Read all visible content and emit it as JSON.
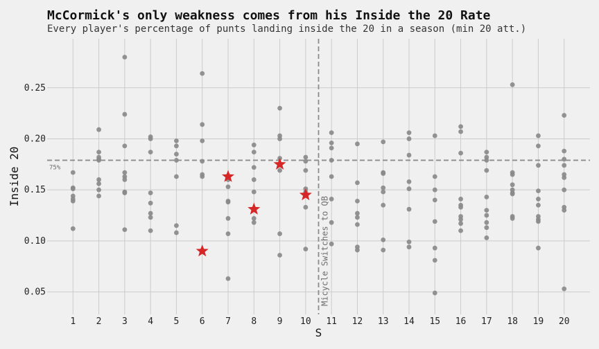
{
  "chart_data": {
    "type": "scatter",
    "title": "McCormick's only weakness comes from his Inside the 20 Rate",
    "subtitle": "Every player's percentage of punts landing inside the 20 in a season (min 20 att.)",
    "xlabel": "S",
    "ylabel": "Inside 20",
    "xlim": [
      0,
      21
    ],
    "ylim": [
      0.028,
      0.298
    ],
    "xticks": [
      1,
      2,
      3,
      4,
      5,
      6,
      7,
      8,
      9,
      10,
      11,
      12,
      13,
      14,
      15,
      16,
      17,
      18,
      19,
      20
    ],
    "yticks": [
      0.05,
      0.1,
      0.15,
      0.2,
      0.25
    ],
    "ytick_labels": [
      "0.05",
      "0.10",
      "0.15",
      "0.20",
      "0.25"
    ],
    "grid": true,
    "reference_line": {
      "y": 0.179,
      "label": "75%"
    },
    "vertical_line": {
      "x": 10.5,
      "label": "Micycle Switches to QB"
    },
    "colors": {
      "background": "#f0f0f0",
      "points": "#8a8a8a",
      "highlight": "#d62728",
      "grid": "#cbcbcb",
      "reference": "#8c8c8c"
    },
    "series": [
      {
        "name": "",
        "marker": "circle",
        "points": [
          [
            1,
            0.167
          ],
          [
            1,
            0.152
          ],
          [
            1,
            0.151
          ],
          [
            1,
            0.144
          ],
          [
            1,
            0.141
          ],
          [
            1,
            0.139
          ],
          [
            1,
            0.112
          ],
          [
            2,
            0.209
          ],
          [
            2,
            0.187
          ],
          [
            2,
            0.182
          ],
          [
            2,
            0.18
          ],
          [
            2,
            0.179
          ],
          [
            2,
            0.16
          ],
          [
            2,
            0.156
          ],
          [
            2,
            0.15
          ],
          [
            2,
            0.144
          ],
          [
            3,
            0.28
          ],
          [
            3,
            0.224
          ],
          [
            3,
            0.193
          ],
          [
            3,
            0.167
          ],
          [
            3,
            0.163
          ],
          [
            3,
            0.16
          ],
          [
            3,
            0.148
          ],
          [
            3,
            0.147
          ],
          [
            3,
            0.111
          ],
          [
            4,
            0.202
          ],
          [
            4,
            0.2
          ],
          [
            4,
            0.187
          ],
          [
            4,
            0.147
          ],
          [
            4,
            0.137
          ],
          [
            4,
            0.127
          ],
          [
            4,
            0.123
          ],
          [
            4,
            0.11
          ],
          [
            5,
            0.198
          ],
          [
            5,
            0.193
          ],
          [
            5,
            0.185
          ],
          [
            5,
            0.179
          ],
          [
            5,
            0.163
          ],
          [
            5,
            0.115
          ],
          [
            5,
            0.108
          ],
          [
            6,
            0.264
          ],
          [
            6,
            0.214
          ],
          [
            6,
            0.198
          ],
          [
            6,
            0.178
          ],
          [
            6,
            0.165
          ],
          [
            6,
            0.163
          ],
          [
            7,
            0.16
          ],
          [
            7,
            0.153
          ],
          [
            7,
            0.139
          ],
          [
            7,
            0.138
          ],
          [
            7,
            0.122
          ],
          [
            7,
            0.107
          ],
          [
            7,
            0.063
          ],
          [
            8,
            0.194
          ],
          [
            8,
            0.187
          ],
          [
            8,
            0.172
          ],
          [
            8,
            0.16
          ],
          [
            8,
            0.148
          ],
          [
            8,
            0.122
          ],
          [
            8,
            0.118
          ],
          [
            9,
            0.23
          ],
          [
            9,
            0.203
          ],
          [
            9,
            0.2
          ],
          [
            9,
            0.181
          ],
          [
            9,
            0.169
          ],
          [
            9,
            0.107
          ],
          [
            9,
            0.086
          ],
          [
            10,
            0.182
          ],
          [
            10,
            0.178
          ],
          [
            10,
            0.169
          ],
          [
            10,
            0.151
          ],
          [
            10,
            0.148
          ],
          [
            10,
            0.133
          ],
          [
            10,
            0.092
          ],
          [
            11,
            0.206
          ],
          [
            11,
            0.196
          ],
          [
            11,
            0.191
          ],
          [
            11,
            0.179
          ],
          [
            11,
            0.163
          ],
          [
            11,
            0.141
          ],
          [
            11,
            0.118
          ],
          [
            11,
            0.097
          ],
          [
            12,
            0.195
          ],
          [
            12,
            0.157
          ],
          [
            12,
            0.139
          ],
          [
            12,
            0.127
          ],
          [
            12,
            0.123
          ],
          [
            12,
            0.116
          ],
          [
            12,
            0.094
          ],
          [
            12,
            0.091
          ],
          [
            13,
            0.197
          ],
          [
            13,
            0.167
          ],
          [
            13,
            0.166
          ],
          [
            13,
            0.152
          ],
          [
            13,
            0.148
          ],
          [
            13,
            0.135
          ],
          [
            13,
            0.101
          ],
          [
            13,
            0.091
          ],
          [
            14,
            0.206
          ],
          [
            14,
            0.2
          ],
          [
            14,
            0.184
          ],
          [
            14,
            0.158
          ],
          [
            14,
            0.151
          ],
          [
            14,
            0.131
          ],
          [
            14,
            0.099
          ],
          [
            14,
            0.094
          ],
          [
            15,
            0.203
          ],
          [
            15,
            0.163
          ],
          [
            15,
            0.15
          ],
          [
            15,
            0.14
          ],
          [
            15,
            0.119
          ],
          [
            15,
            0.093
          ],
          [
            15,
            0.081
          ],
          [
            15,
            0.049
          ],
          [
            16,
            0.212
          ],
          [
            16,
            0.207
          ],
          [
            16,
            0.186
          ],
          [
            16,
            0.141
          ],
          [
            16,
            0.135
          ],
          [
            16,
            0.133
          ],
          [
            16,
            0.124
          ],
          [
            16,
            0.121
          ],
          [
            16,
            0.117
          ],
          [
            16,
            0.11
          ],
          [
            17,
            0.187
          ],
          [
            17,
            0.182
          ],
          [
            17,
            0.179
          ],
          [
            17,
            0.169
          ],
          [
            17,
            0.143
          ],
          [
            17,
            0.13
          ],
          [
            17,
            0.125
          ],
          [
            17,
            0.118
          ],
          [
            17,
            0.113
          ],
          [
            17,
            0.103
          ],
          [
            18,
            0.253
          ],
          [
            18,
            0.167
          ],
          [
            18,
            0.165
          ],
          [
            18,
            0.155
          ],
          [
            18,
            0.15
          ],
          [
            18,
            0.147
          ],
          [
            18,
            0.146
          ],
          [
            18,
            0.124
          ],
          [
            18,
            0.122
          ],
          [
            19,
            0.203
          ],
          [
            19,
            0.193
          ],
          [
            19,
            0.174
          ],
          [
            19,
            0.149
          ],
          [
            19,
            0.141
          ],
          [
            19,
            0.135
          ],
          [
            19,
            0.124
          ],
          [
            19,
            0.121
          ],
          [
            19,
            0.119
          ],
          [
            19,
            0.093
          ],
          [
            20,
            0.223
          ],
          [
            20,
            0.188
          ],
          [
            20,
            0.18
          ],
          [
            20,
            0.174
          ],
          [
            20,
            0.165
          ],
          [
            20,
            0.162
          ],
          [
            20,
            0.15
          ],
          [
            20,
            0.133
          ],
          [
            20,
            0.13
          ],
          [
            20,
            0.053
          ]
        ]
      },
      {
        "name": "",
        "marker": "star",
        "points": [
          [
            6,
            0.09
          ],
          [
            7,
            0.163
          ],
          [
            8,
            0.131
          ],
          [
            9,
            0.175
          ],
          [
            10,
            0.145
          ]
        ]
      }
    ]
  }
}
